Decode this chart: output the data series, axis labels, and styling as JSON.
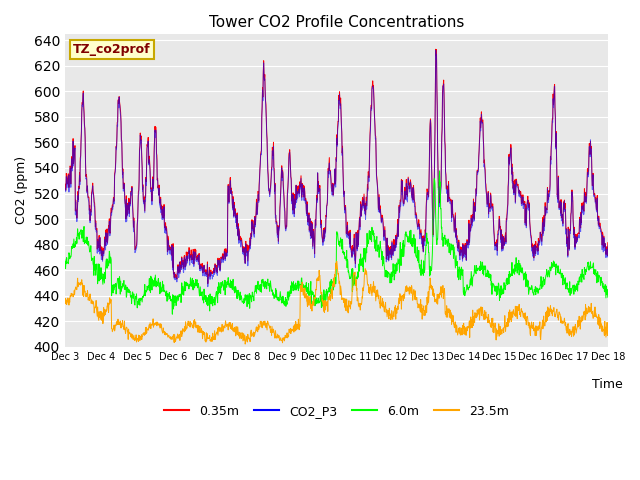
{
  "title": "Tower CO2 Profile Concentrations",
  "xlabel": "Time",
  "ylabel": "CO2 (ppm)",
  "ylim": [
    400,
    645
  ],
  "yticks": [
    400,
    420,
    440,
    460,
    480,
    500,
    520,
    540,
    560,
    580,
    600,
    620,
    640
  ],
  "annotation_text": "TZ_co2prof",
  "annotation_border_color": "#c8a800",
  "annotation_face_color": "#ffffcc",
  "plot_bg_color": "#e8e8e8",
  "fig_bg_color": "#ffffff",
  "grid_color": "#ffffff",
  "series": {
    "r035": {
      "label": "0.35m",
      "color": "red"
    },
    "co2p3": {
      "label": "CO2_P3",
      "color": "blue"
    },
    "r60": {
      "label": "6.0m",
      "color": "lime"
    },
    "r235": {
      "label": "23.5m",
      "color": "orange"
    }
  },
  "n_days": 15,
  "pts_per_day": 96,
  "start_day": 3,
  "xtick_labels": [
    "Dec 3",
    "Dec 4",
    "Dec 5",
    "Dec 6",
    "Dec 7",
    "Dec 8",
    "Dec 9",
    "Dec 10",
    "Dec 11",
    "Dec 12",
    "Dec 13",
    "Dec 14",
    "Dec 15",
    "Dec 16",
    "Dec 17",
    "Dec 18"
  ]
}
